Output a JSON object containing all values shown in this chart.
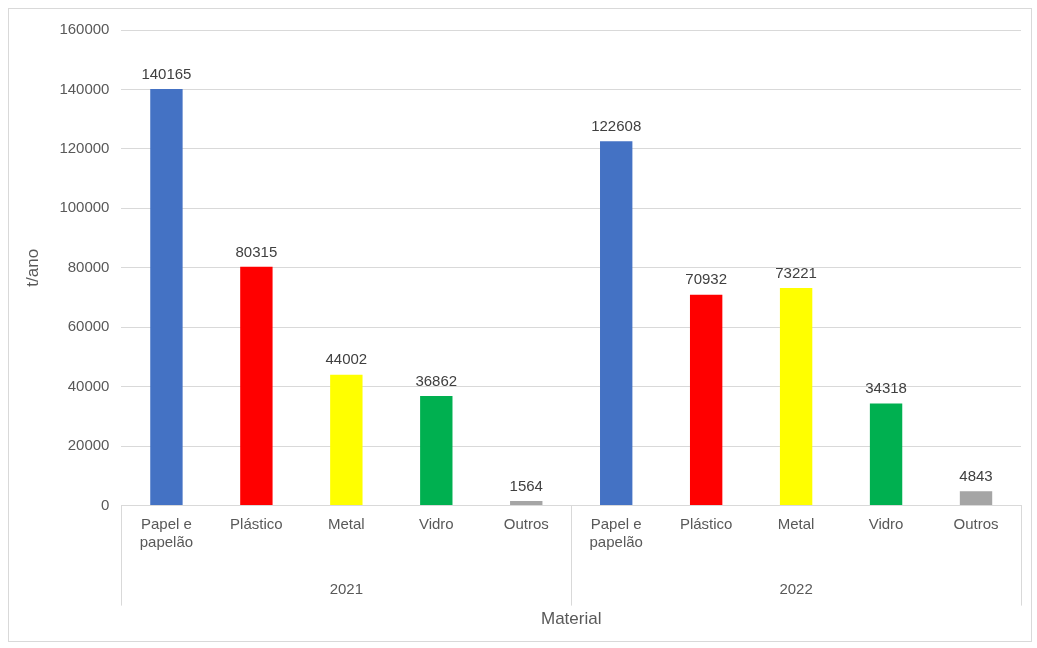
{
  "chart_data": {
    "type": "bar",
    "categories": [
      "Papel e papelão",
      "Plástico",
      "Metal",
      "Vidro",
      "Outros",
      "Papel e papelão",
      "Plástico",
      "Metal",
      "Vidro",
      "Outros"
    ],
    "values": [
      140165,
      80315,
      44002,
      36862,
      1564,
      122608,
      70932,
      73221,
      34318,
      4843
    ],
    "colors": [
      "#4472c4",
      "#ff0000",
      "#ffff00",
      "#00b050",
      "#a5a5a5",
      "#4472c4",
      "#ff0000",
      "#ffff00",
      "#00b050",
      "#a5a5a5"
    ],
    "ylim": [
      0,
      160000
    ],
    "yticks": [
      0,
      20000,
      40000,
      60000,
      80000,
      100000,
      120000,
      140000,
      160000
    ],
    "ylabel": "t/ano",
    "xlabel": "Material",
    "annotations": [
      "2021",
      "2022"
    ],
    "grid": "y",
    "legend": false,
    "data_labels": true
  }
}
